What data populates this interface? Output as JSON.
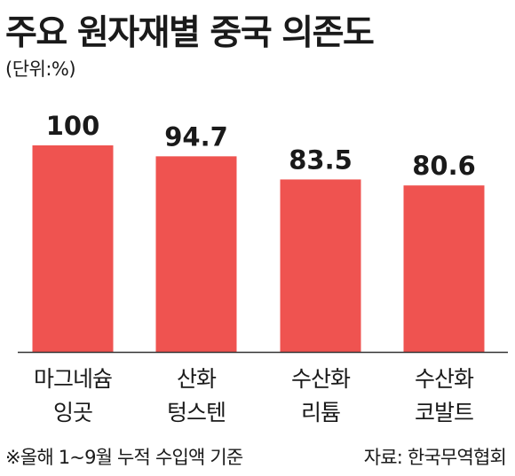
{
  "title": "주요 원자재별 중국 의존도",
  "unit": "(단위:%)",
  "note": "※올해 1~9월 누적 수입액 기준",
  "source": "자료: 한국무역협회",
  "colors": {
    "bar": "#ef5350",
    "axis": "#333333",
    "text": "#1a1a1a"
  },
  "chart_data": {
    "type": "bar",
    "title": "주요 원자재별 중국 의존도",
    "ylabel": "(단위:%)",
    "categories": [
      [
        "마그네슘",
        "잉곳"
      ],
      [
        "산화",
        "텅스텐"
      ],
      [
        "수산화",
        "리튬"
      ],
      [
        "수산화",
        "코발트"
      ]
    ],
    "values": [
      100,
      94.7,
      83.5,
      80.6
    ],
    "value_labels": [
      "100",
      "94.7",
      "83.5",
      "80.6"
    ],
    "ylim": [
      0,
      100
    ],
    "grid": false
  }
}
